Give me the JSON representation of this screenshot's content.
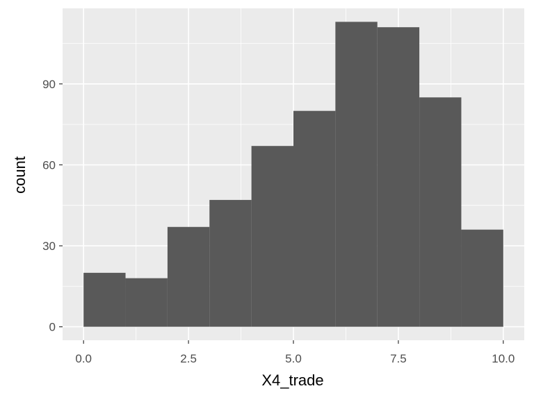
{
  "chart_data": {
    "type": "histogram",
    "xlabel": "X4_trade",
    "ylabel": "count",
    "bins": [
      {
        "x0": 0,
        "x1": 1,
        "count": 20
      },
      {
        "x0": 1,
        "x1": 2,
        "count": 18
      },
      {
        "x0": 2,
        "x1": 3,
        "count": 37
      },
      {
        "x0": 3,
        "x1": 4,
        "count": 47
      },
      {
        "x0": 4,
        "x1": 5,
        "count": 67
      },
      {
        "x0": 5,
        "x1": 6,
        "count": 80
      },
      {
        "x0": 6,
        "x1": 7,
        "count": 113
      },
      {
        "x0": 7,
        "x1": 8,
        "count": 111
      },
      {
        "x0": 8,
        "x1": 9,
        "count": 85
      },
      {
        "x0": 9,
        "x1": 10,
        "count": 36
      }
    ],
    "xlim": [
      -0.5,
      10.5
    ],
    "ylim": [
      -5,
      118
    ],
    "x_ticks": [
      0,
      2.5,
      5,
      7.5,
      10
    ],
    "x_tick_labels": [
      "0.0",
      "2.5",
      "5.0",
      "7.5",
      "10.0"
    ],
    "y_ticks": [
      0,
      30,
      60,
      90
    ],
    "y_tick_labels": [
      "0",
      "30",
      "60",
      "90"
    ],
    "grid": true,
    "panel_background": "#ebebeb",
    "bar_color": "#595959",
    "grid_color": "#ffffff"
  }
}
